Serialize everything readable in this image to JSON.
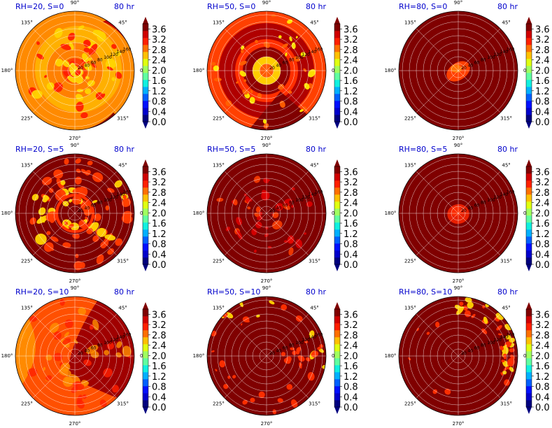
{
  "figure": {
    "time_label": "80 hr",
    "colorbar": {
      "ticks": [
        "0.0",
        "0.4",
        "0.8",
        "1.2",
        "1.6",
        "2.0",
        "2.4",
        "2.8",
        "3.2",
        "3.6"
      ],
      "min": 0.0,
      "max": 3.8,
      "extend": "both",
      "colormap": "jet"
    },
    "angle_labels": [
      "0°",
      "45°",
      "90°",
      "135°",
      "180°",
      "225°",
      "270°",
      "315°"
    ],
    "radial_labels": [
      "20",
      "40",
      "60",
      "80",
      "100",
      "120",
      "140",
      "160"
    ]
  },
  "chart_data": [
    {
      "type": "heatmap",
      "title": "RH=20, S=0",
      "row": 0,
      "col": 0,
      "pattern": "swirl",
      "colors": {
        "background": "#800000",
        "core": "#ff1a00",
        "ring": "#ff7f00",
        "spots": "#ffd400"
      }
    },
    {
      "type": "heatmap",
      "title": "RH=50, S=0",
      "row": 0,
      "col": 1,
      "pattern": "spiral-bands",
      "colors": {
        "background": "#800000",
        "core": "#ff1a00",
        "ring": "#ff5a00",
        "spots": "#ffea00"
      }
    },
    {
      "type": "heatmap",
      "title": "RH=80, S=0",
      "row": 0,
      "col": 2,
      "pattern": "core-only",
      "colors": {
        "background": "#800000",
        "core": "#ff4000",
        "ring": "#800000",
        "spots": "#ff7f00"
      }
    },
    {
      "type": "heatmap",
      "title": "RH=20, S=5",
      "row": 1,
      "col": 0,
      "pattern": "scattered-bands",
      "colors": {
        "background": "#800000",
        "core": "#cc0000",
        "ring": "#ff3a00",
        "spots": "#ffd400"
      }
    },
    {
      "type": "heatmap",
      "title": "RH=50, S=5",
      "row": 1,
      "col": 1,
      "pattern": "faint-bands",
      "colors": {
        "background": "#800000",
        "core": "#b00000",
        "ring": "#e00000",
        "spots": "#ff4000"
      }
    },
    {
      "type": "heatmap",
      "title": "RH=80, S=5",
      "row": 1,
      "col": 2,
      "pattern": "core-only",
      "colors": {
        "background": "#800000",
        "core": "#e82000",
        "ring": "#800000",
        "spots": "#ff3000"
      }
    },
    {
      "type": "heatmap",
      "title": "RH=20, S=10",
      "row": 2,
      "col": 0,
      "pattern": "broad-west",
      "colors": {
        "background": "#a00000",
        "core": "#cc1000",
        "ring": "#ff5000",
        "spots": "#ff8a00"
      }
    },
    {
      "type": "heatmap",
      "title": "RH=50, S=10",
      "row": 2,
      "col": 1,
      "pattern": "edge-streaks",
      "colors": {
        "background": "#800000",
        "core": "#800000",
        "ring": "#ff3000",
        "spots": "#ffd400"
      }
    },
    {
      "type": "heatmap",
      "title": "RH=80, S=10",
      "row": 2,
      "col": 2,
      "pattern": "edge-streaks-east",
      "colors": {
        "background": "#800000",
        "core": "#800000",
        "ring": "#ff3000",
        "spots": "#ffd400"
      }
    }
  ]
}
